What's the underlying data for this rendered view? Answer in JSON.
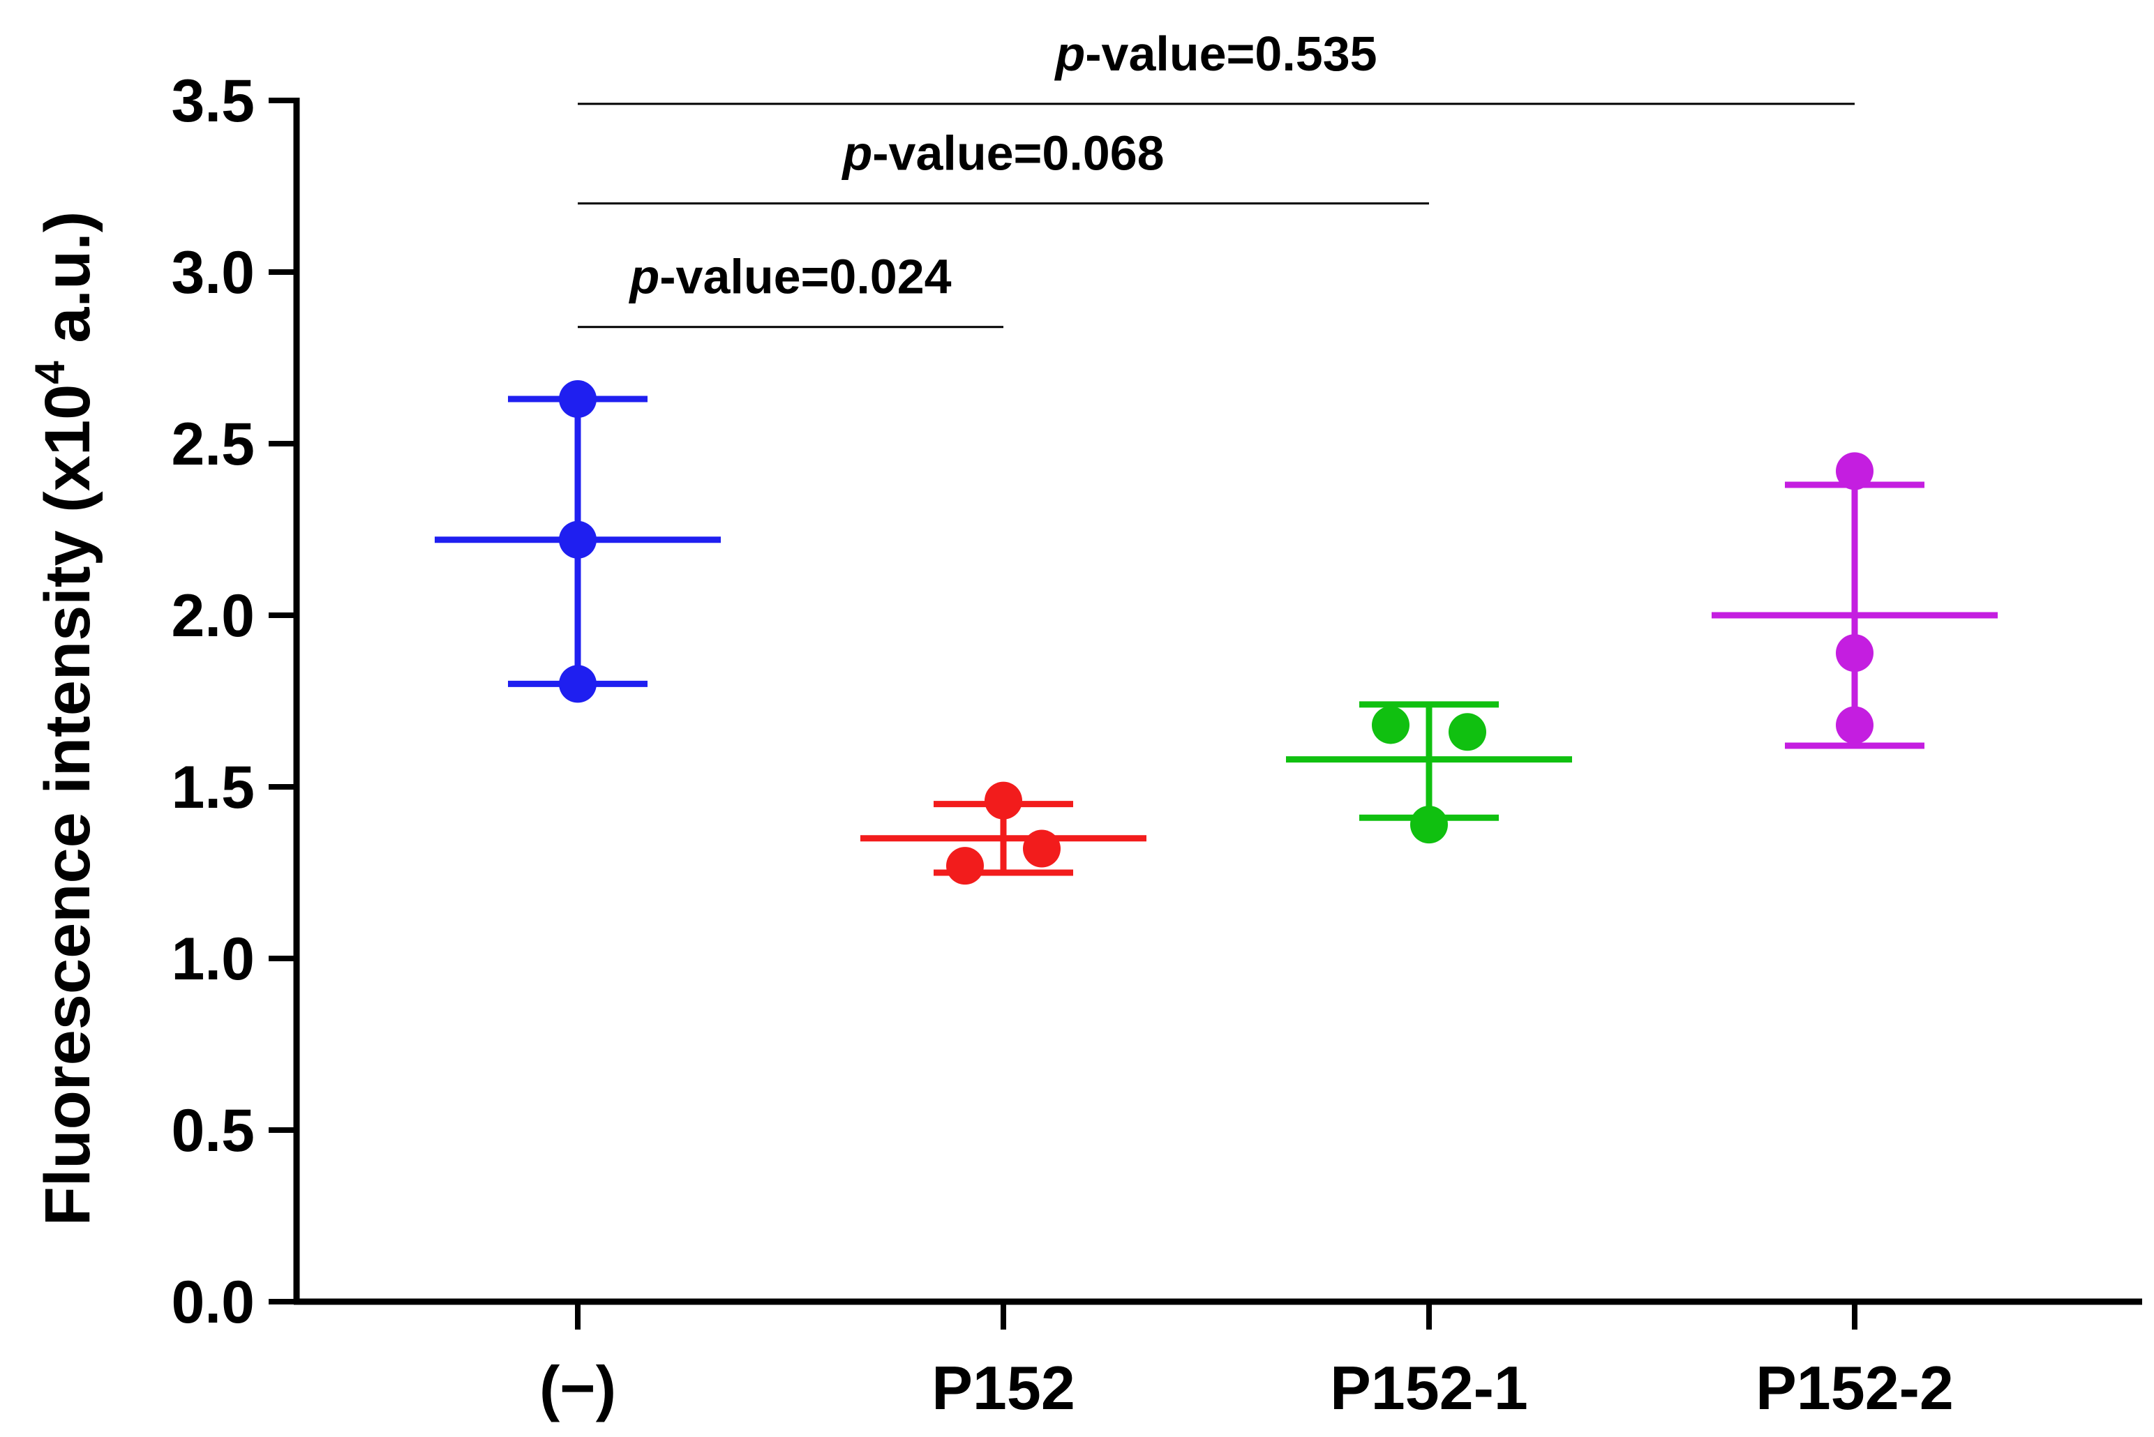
{
  "chart_data": {
    "type": "scatter",
    "title": "",
    "xlabel": "",
    "ylabel_main": "Fluorescence intensity (x10",
    "ylabel_sup": "4",
    "ylabel_tail": " a.u.)",
    "ylim": [
      0,
      3.5
    ],
    "yticks": [
      0.0,
      0.5,
      1.0,
      1.5,
      2.0,
      2.5,
      3.0,
      3.5
    ],
    "ytick_labels": [
      "0.0",
      "0.5",
      "1.0",
      "1.5",
      "2.0",
      "2.5",
      "3.0",
      "3.5"
    ],
    "categories": [
      "(−)",
      "P152",
      "P152-1",
      "P152-2"
    ],
    "series": [
      {
        "name": "(−)",
        "color": "#1f1ff0",
        "points": [
          2.63,
          2.22,
          1.8
        ],
        "mean": 2.22,
        "err_high": 2.63,
        "err_low": 1.8
      },
      {
        "name": "P152",
        "color": "#f21c1c",
        "points": [
          1.46,
          1.32,
          1.27
        ],
        "mean": 1.35,
        "err_high": 1.45,
        "err_low": 1.25
      },
      {
        "name": "P152-1",
        "color": "#10c010",
        "points": [
          1.68,
          1.66,
          1.39
        ],
        "mean": 1.58,
        "err_high": 1.74,
        "err_low": 1.41
      },
      {
        "name": "P152-2",
        "color": "#c41ee0",
        "points": [
          2.42,
          1.89,
          1.68
        ],
        "mean": 2.0,
        "err_high": 2.38,
        "err_low": 1.62
      }
    ],
    "comparisons": [
      {
        "from": 0,
        "to": 1,
        "p_italic": "p",
        "p_text": "-value=0.024",
        "bar_y": 2.84
      },
      {
        "from": 0,
        "to": 2,
        "p_italic": "p",
        "p_text": "-value=0.068",
        "bar_y": 3.2
      },
      {
        "from": 0,
        "to": 3,
        "p_italic": "p",
        "p_text": "-value=0.535",
        "bar_y": 3.49
      }
    ]
  }
}
